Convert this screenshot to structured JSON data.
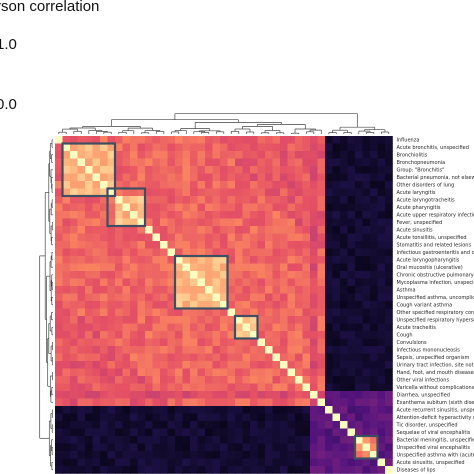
{
  "chart_data": {
    "type": "heatmap",
    "title": "",
    "colorbar": {
      "label": "rson correlation",
      "ticks": [
        "1.0",
        "0.0"
      ]
    },
    "row_labels": [
      "Influenza",
      "Acute bronchitis, unspecified",
      "Bronchiolitis",
      "Bronchopneumonia",
      "Group: \"Bronchitis\"",
      "Bacterial pneumonia, not elsewhe",
      "Other disorders of lung",
      "Acute laryngitis",
      "Acute laryngotracheitis",
      "Acute pharyngitis",
      "Acute upper respiratory infection,",
      "Fever, unspecified",
      "Acute sinusitis",
      "Acute tonsillitis, unspecified",
      "Stomatitis and related lesions",
      "Infectious gastroenteritis and colit",
      "Acute laryngopharyngitis",
      "Oral mucositis (ulcerative)",
      "Chronic obstructive pulmonary dis",
      "Mycoplasma infection, unspecified",
      "Asthma",
      "Unspecified asthma, uncomplicate",
      "Cough variant asthma",
      "Other specified respiratory conditi",
      "Unspecified respiratory hypersens",
      "Acute tracheitis",
      "Cough",
      "Convulsions",
      "Infectious mononucleosis",
      "Sepsis, unspecified organism",
      "Urinary tract infection, site not spe",
      "Hand, foot, and mouth diseases",
      "Other viral infections",
      "Varicella without complications",
      "Diarrhea, unspecified",
      "Exanthema subitum (sixth disease",
      "Acute recurrent sinusitis, unspecif",
      "Attention-deficit hyperactivity diso",
      "Tic disorder, unspecified",
      "Sequelae of viral encephalitis",
      "Bacterial meningitis, unspecified",
      "Unspecified viral encephalitis",
      "Unspecified asthma with (acute) e",
      "Acute sinusitis, unspecified",
      "Diseases of lips"
    ],
    "clusters": [
      {
        "name": "cluster-1",
        "start": 1,
        "end": 7
      },
      {
        "name": "cluster-2",
        "start": 7,
        "end": 11
      },
      {
        "name": "cluster-3",
        "start": 16,
        "end": 22
      },
      {
        "name": "cluster-4",
        "start": 24,
        "end": 26
      },
      {
        "name": "cluster-5",
        "start": 40,
        "end": 42
      }
    ],
    "value_range": [
      0.0,
      1.0
    ],
    "outgroup_start": 36,
    "light_columns": [
      {
        "index": 34,
        "strength": 0.55
      },
      {
        "index": 35,
        "strength": 0.75
      }
    ]
  }
}
